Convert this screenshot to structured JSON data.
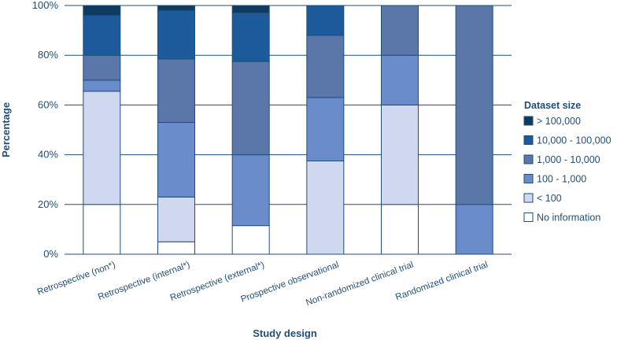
{
  "chart_data": {
    "type": "bar",
    "stacked": true,
    "title": "",
    "xlabel": "Study design",
    "ylabel": "Percentage",
    "ylim": [
      0,
      100
    ],
    "y_ticks": [
      "0%",
      "20%",
      "40%",
      "60%",
      "80%",
      "100%"
    ],
    "y_tick_values": [
      0,
      20,
      40,
      60,
      80,
      100
    ],
    "grid": true,
    "legend_position": "right",
    "legend_title": "Dataset size",
    "categories": [
      "Retrospective (non*)",
      "Retrospective (internal*)",
      "Retrospective (external*)",
      "Prospective observational",
      "Non-randomized clinical trial",
      "Randomized clinical trial"
    ],
    "series": [
      {
        "name": "No information",
        "color": "#ffffff",
        "values": [
          20,
          5,
          11.5,
          0,
          20,
          0
        ]
      },
      {
        "name": "< 100",
        "color": "#cfd8ef",
        "values": [
          45.5,
          18,
          0,
          37.5,
          40,
          0
        ]
      },
      {
        "name": "100 - 1,000",
        "color": "#6b8ccb",
        "values": [
          4.5,
          30,
          28.5,
          25.5,
          20,
          20
        ]
      },
      {
        "name": "1,000 - 10,000",
        "color": "#5b77aa",
        "values": [
          10,
          25.5,
          37.5,
          25,
          20,
          80
        ]
      },
      {
        "name": "10,000 - 100,000",
        "color": "#1c5a9c",
        "values": [
          16,
          19.5,
          19.5,
          12,
          0,
          0
        ]
      },
      {
        "name": "> 100,000",
        "color": "#0f3a62",
        "values": [
          4,
          2,
          3,
          0,
          0,
          0
        ]
      }
    ]
  }
}
